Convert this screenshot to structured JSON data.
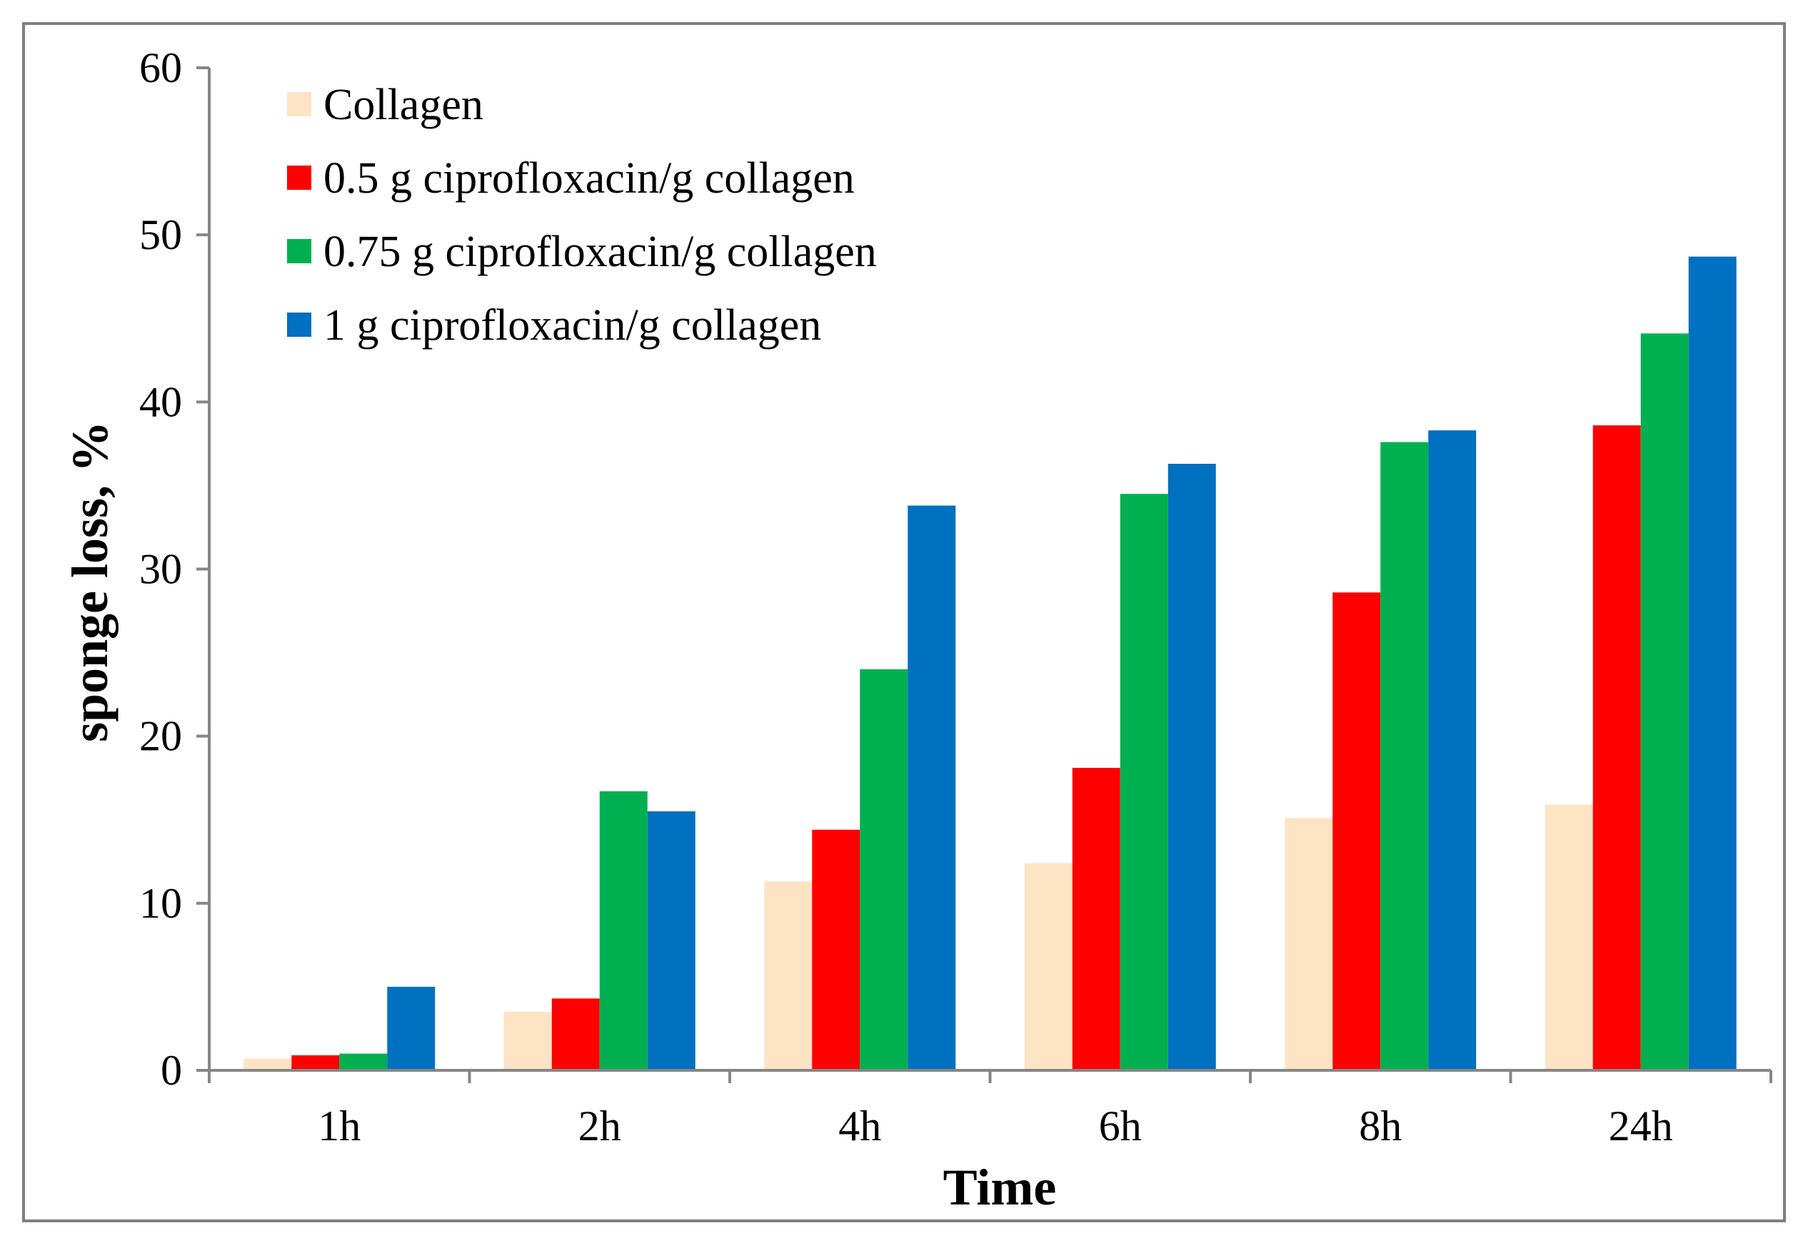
{
  "chart_data": {
    "type": "bar",
    "title": "",
    "xlabel": "Time",
    "ylabel": "sponge loss, %",
    "ylim": [
      0,
      60
    ],
    "yticks": [
      0,
      10,
      20,
      30,
      40,
      50,
      60
    ],
    "categories": [
      "1h",
      "2h",
      "4h",
      "6h",
      "8h",
      "24h"
    ],
    "legend_position": "top-left",
    "grid": false,
    "series": [
      {
        "name": "Collagen",
        "color": "#FCE4C4",
        "values": [
          0.7,
          3.5,
          11.3,
          12.4,
          15.1,
          15.9
        ]
      },
      {
        "name": "0.5 g ciprofloxacin/g collagen",
        "color": "#FF0000",
        "values": [
          0.9,
          4.3,
          14.4,
          18.1,
          28.6,
          38.6
        ]
      },
      {
        "name": "0.75 g ciprofloxacin/g collagen",
        "color": "#00B050",
        "values": [
          1.0,
          16.7,
          24.0,
          34.5,
          37.6,
          44.1
        ]
      },
      {
        "name": "1 g ciprofloxacin/g collagen",
        "color": "#0070C0",
        "values": [
          5.0,
          15.5,
          33.8,
          36.3,
          38.3,
          48.7
        ]
      }
    ]
  }
}
